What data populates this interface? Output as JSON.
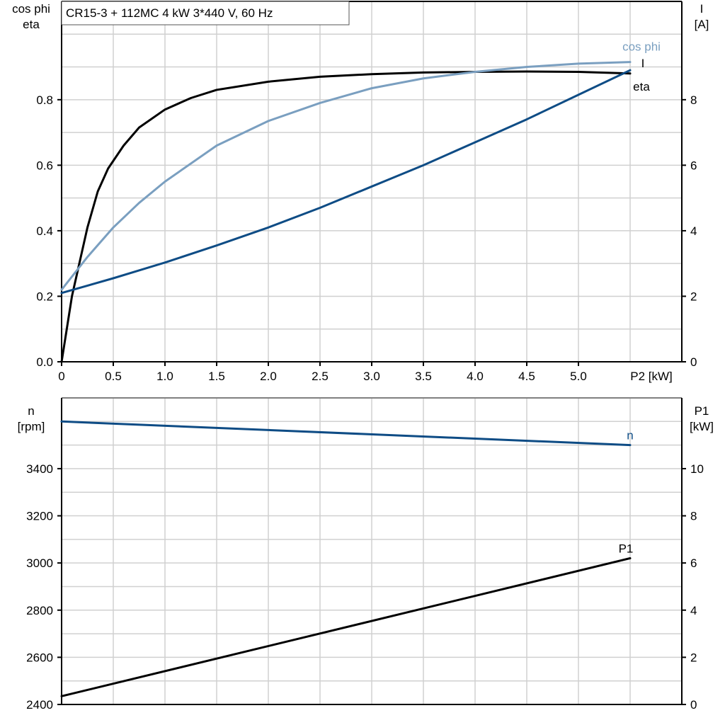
{
  "chart_data": [
    {
      "type": "line",
      "title": "CR15-3 + 112MC   4 kW   3*440 V, 60 Hz",
      "xlabel": "P2 [kW]",
      "ylabel_left": [
        "cos phi",
        "eta"
      ],
      "ylabel_right": [
        "I",
        "[A]"
      ],
      "xlim": [
        0,
        6
      ],
      "ylim_left": [
        0,
        1.1
      ],
      "ylim_right": [
        0,
        11
      ],
      "x_ticks": [
        "0",
        "0.5",
        "1.0",
        "1.5",
        "2.0",
        "2.5",
        "3.0",
        "3.5",
        "4.0",
        "4.5",
        "5.0"
      ],
      "y_ticks_left": [
        "0.0",
        "0.2",
        "0.4",
        "0.6",
        "0.8"
      ],
      "y_ticks_right": [
        "0",
        "2",
        "4",
        "6",
        "8"
      ],
      "grid": true,
      "series": [
        {
          "name": "eta",
          "axis": "left",
          "color": "#000000",
          "x": [
            0,
            0.1,
            0.25,
            0.35,
            0.45,
            0.6,
            0.75,
            1.0,
            1.25,
            1.5,
            2.0,
            2.5,
            3.0,
            3.5,
            4.0,
            4.5,
            5.0,
            5.5
          ],
          "y": [
            0,
            0.2,
            0.41,
            0.52,
            0.59,
            0.66,
            0.715,
            0.77,
            0.805,
            0.83,
            0.855,
            0.87,
            0.878,
            0.883,
            0.885,
            0.886,
            0.885,
            0.88
          ]
        },
        {
          "name": "cos phi",
          "axis": "left",
          "color": "#7a9fc0",
          "x": [
            0,
            0.25,
            0.5,
            0.75,
            1.0,
            1.5,
            2.0,
            2.5,
            3.0,
            3.5,
            4.0,
            4.5,
            5.0,
            5.5
          ],
          "y": [
            0.22,
            0.32,
            0.41,
            0.485,
            0.55,
            0.66,
            0.735,
            0.79,
            0.835,
            0.865,
            0.885,
            0.9,
            0.91,
            0.915
          ]
        },
        {
          "name": "I",
          "axis": "right",
          "color": "#0e4c85",
          "x": [
            0,
            0.5,
            1.0,
            1.5,
            2.0,
            2.5,
            3.0,
            3.5,
            4.0,
            4.5,
            5.0,
            5.5
          ],
          "y": [
            2.1,
            2.55,
            3.03,
            3.55,
            4.1,
            4.7,
            5.35,
            6.0,
            6.7,
            7.4,
            8.15,
            8.9
          ]
        }
      ]
    },
    {
      "type": "line",
      "xlim": [
        0,
        6
      ],
      "ylabel_left": [
        "n",
        "[rpm]"
      ],
      "ylabel_right": [
        "P1",
        "[kW]"
      ],
      "ylim_left": [
        2400,
        3700
      ],
      "ylim_right": [
        0,
        13
      ],
      "y_ticks_left": [
        "2400",
        "2600",
        "2800",
        "3000",
        "3200",
        "3400"
      ],
      "y_ticks_right": [
        "0",
        "2",
        "4",
        "6",
        "8",
        "10"
      ],
      "grid": true,
      "series": [
        {
          "name": "n",
          "axis": "left",
          "color": "#0e4c85",
          "x": [
            0,
            5.5
          ],
          "y": [
            3600,
            3500
          ]
        },
        {
          "name": "P1",
          "axis": "right",
          "color": "#000000",
          "x": [
            0,
            5.5
          ],
          "y": [
            0.35,
            6.2
          ]
        }
      ]
    }
  ]
}
